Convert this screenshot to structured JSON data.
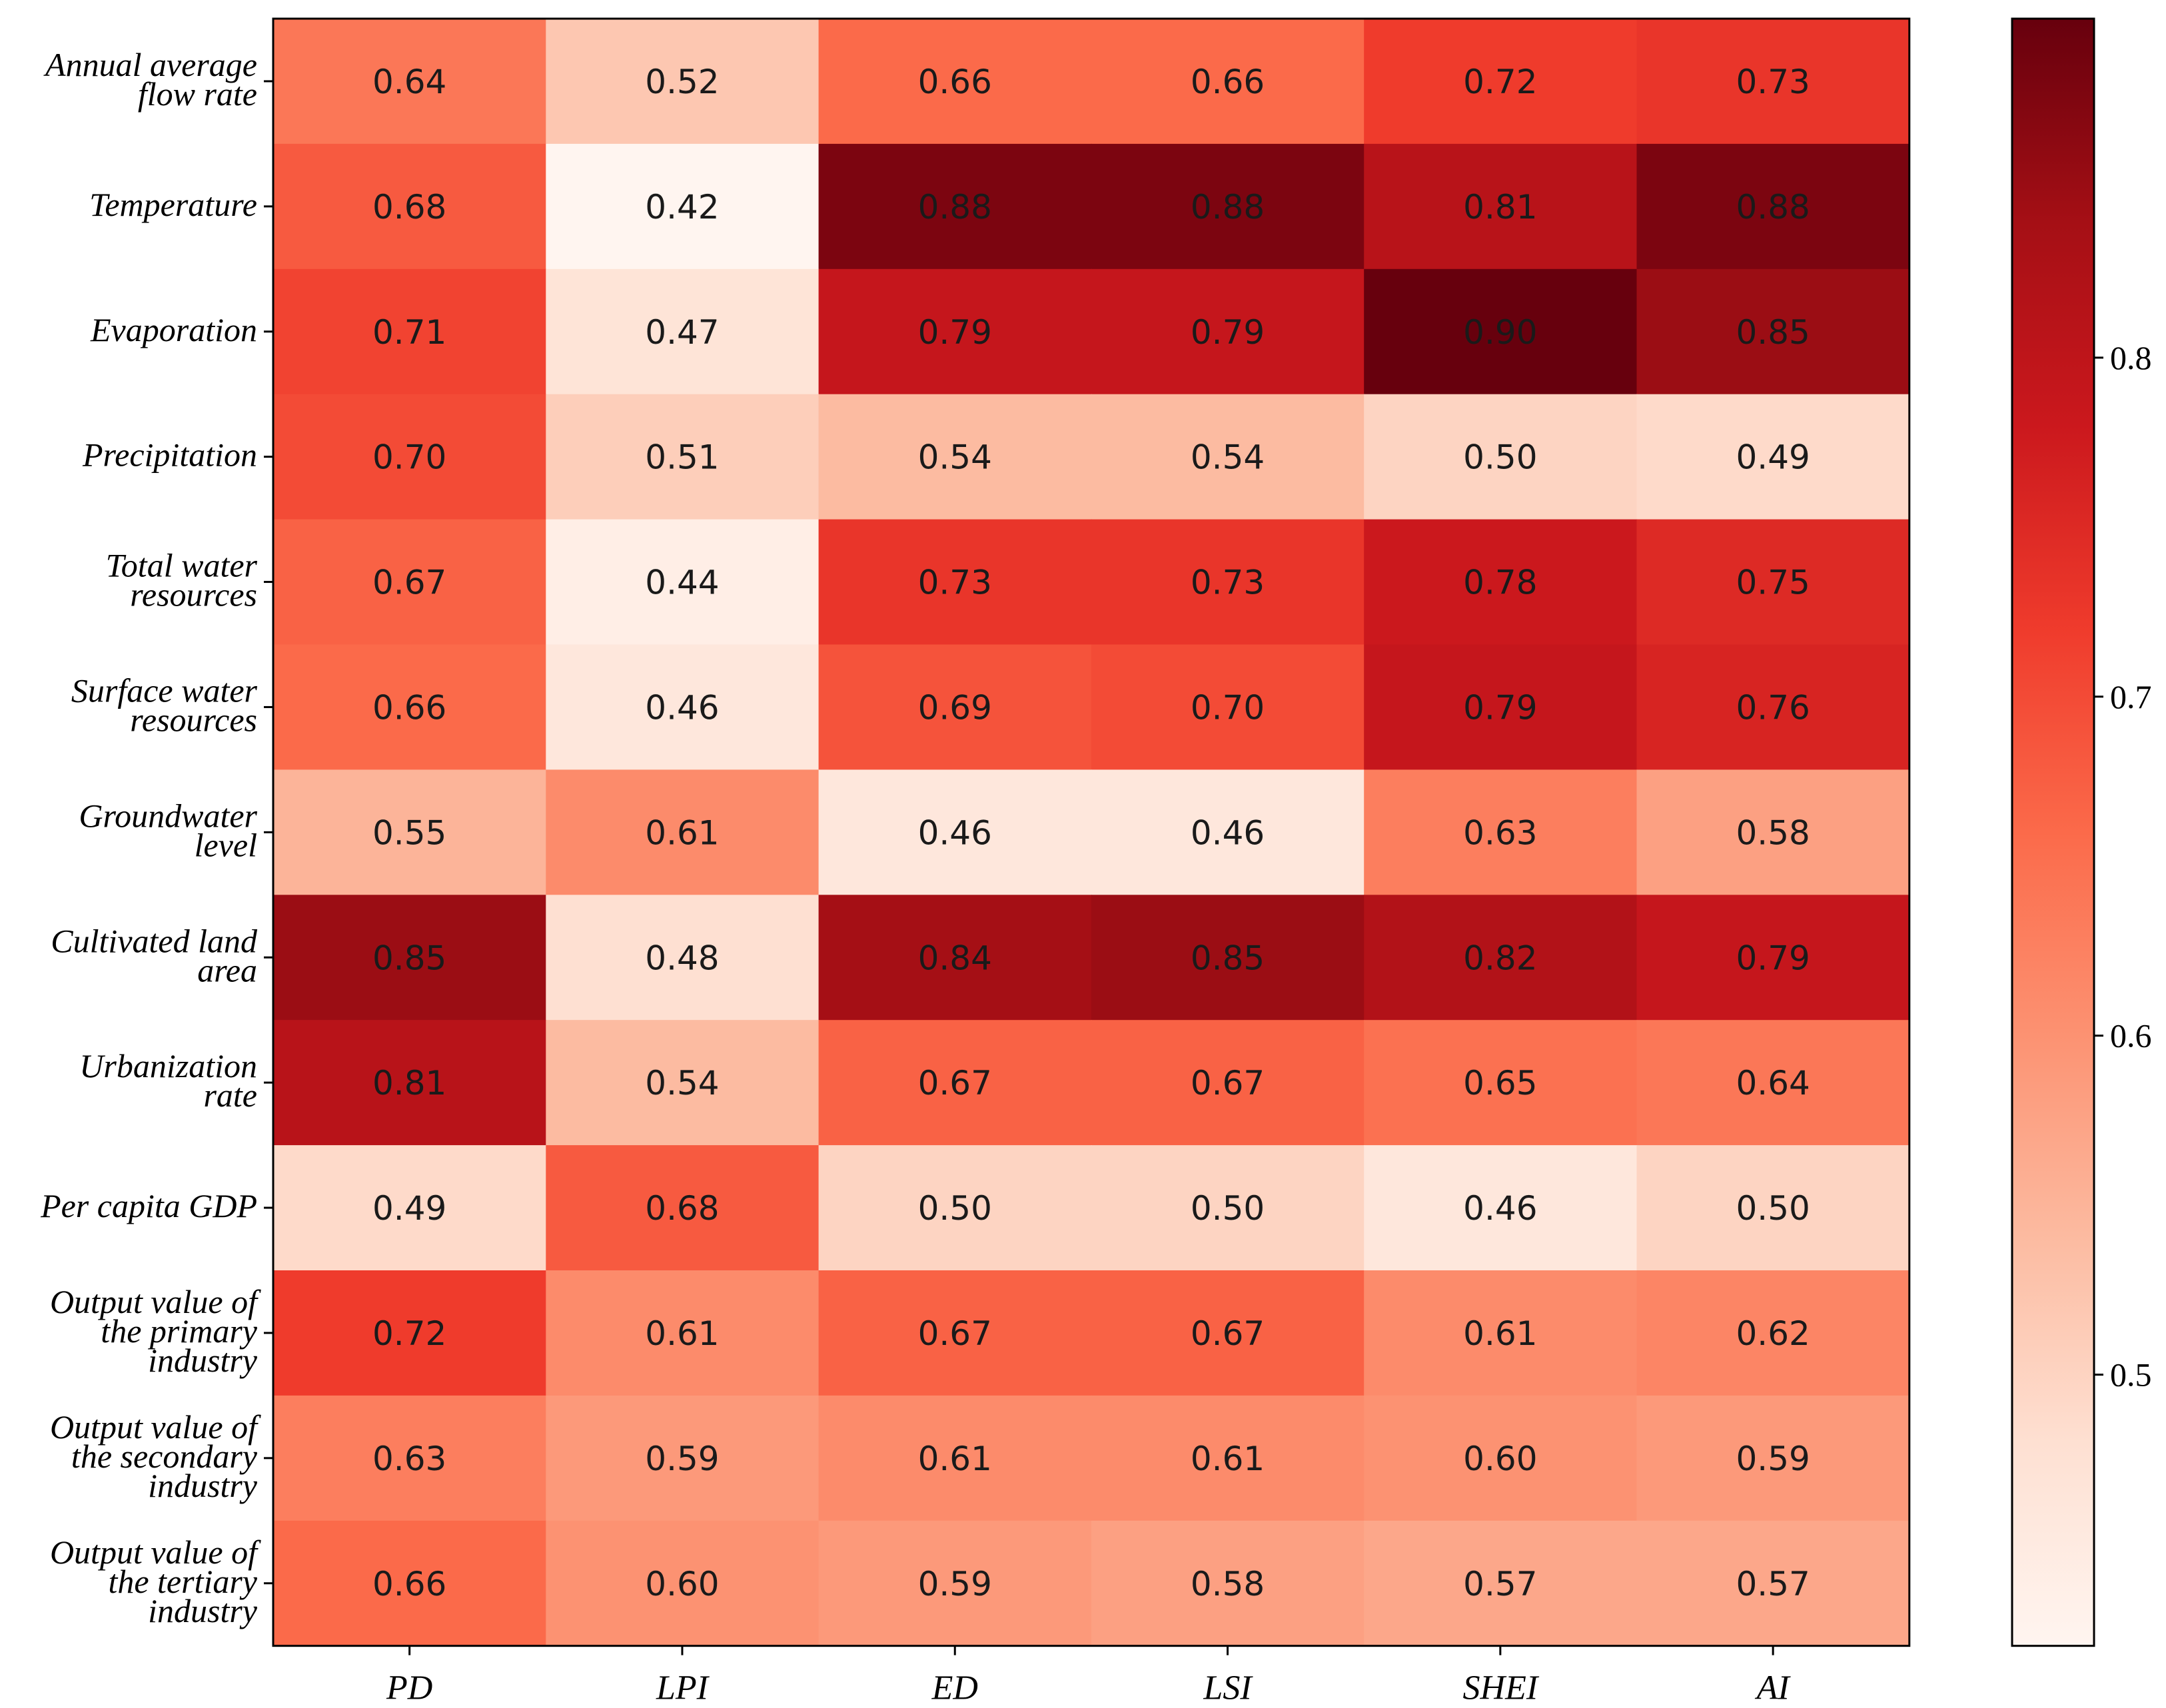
{
  "chart_data": {
    "type": "heatmap",
    "title": "",
    "xlabel": "",
    "ylabel": "",
    "columns": [
      "PD",
      "LPI",
      "ED",
      "LSI",
      "SHEI",
      "AI"
    ],
    "rows": [
      [
        "Annual average",
        "flow rate"
      ],
      [
        "Temperature"
      ],
      [
        "Evaporation"
      ],
      [
        "Precipitation"
      ],
      [
        "Total water",
        "resources"
      ],
      [
        "Surface water",
        "resources"
      ],
      [
        "Groundwater",
        "level"
      ],
      [
        "Cultivated land",
        "area"
      ],
      [
        "Urbanization",
        "rate"
      ],
      [
        "Per capita GDP"
      ],
      [
        "Output value of",
        "the primary",
        "industry"
      ],
      [
        "Output value of",
        "the secondary",
        "industry"
      ],
      [
        "Output value of",
        "the tertiary",
        "industry"
      ]
    ],
    "values": [
      [
        "0.64",
        "0.52",
        "0.66",
        "0.66",
        "0.72",
        "0.73"
      ],
      [
        "0.68",
        "0.42",
        "0.88",
        "0.88",
        "0.81",
        "0.88"
      ],
      [
        "0.71",
        "0.47",
        "0.79",
        "0.79",
        "0.90",
        "0.85"
      ],
      [
        "0.70",
        "0.51",
        "0.54",
        "0.54",
        "0.50",
        "0.49"
      ],
      [
        "0.67",
        "0.44",
        "0.73",
        "0.73",
        "0.78",
        "0.75"
      ],
      [
        "0.66",
        "0.46",
        "0.69",
        "0.70",
        "0.79",
        "0.76"
      ],
      [
        "0.55",
        "0.61",
        "0.46",
        "0.46",
        "0.63",
        "0.58"
      ],
      [
        "0.85",
        "0.48",
        "0.84",
        "0.85",
        "0.82",
        "0.79"
      ],
      [
        "0.81",
        "0.54",
        "0.67",
        "0.67",
        "0.65",
        "0.64"
      ],
      [
        "0.49",
        "0.68",
        "0.50",
        "0.50",
        "0.46",
        "0.50"
      ],
      [
        "0.72",
        "0.61",
        "0.67",
        "0.67",
        "0.61",
        "0.62"
      ],
      [
        "0.63",
        "0.59",
        "0.61",
        "0.61",
        "0.60",
        "0.59"
      ],
      [
        "0.66",
        "0.60",
        "0.59",
        "0.58",
        "0.57",
        "0.57"
      ]
    ],
    "colorbar": {
      "colormap": "Reds",
      "vmin": 0.42,
      "vmax": 0.9,
      "ticks": [
        "0.5",
        "0.6",
        "0.7",
        "0.8"
      ],
      "tick_values": [
        0.5,
        0.6,
        0.7,
        0.8
      ],
      "low_color": "#fff5f0",
      "high_color": "#67000d"
    },
    "annotate": true,
    "grid": false
  }
}
